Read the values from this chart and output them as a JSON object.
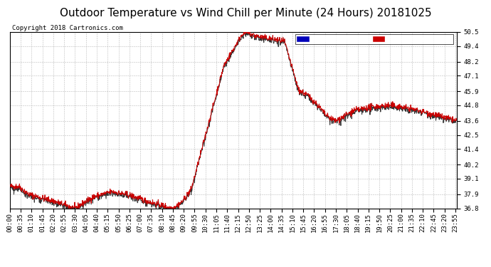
{
  "title": "Outdoor Temperature vs Wind Chill per Minute (24 Hours) 20181025",
  "copyright": "Copyright 2018 Cartronics.com",
  "ylim": [
    36.8,
    50.5
  ],
  "yticks": [
    36.8,
    37.9,
    39.1,
    40.2,
    41.4,
    42.5,
    43.6,
    44.8,
    45.9,
    47.1,
    48.2,
    49.4,
    50.5
  ],
  "line_color": "#cc0000",
  "wind_chill_color": "#333333",
  "background_color": "#ffffff",
  "plot_background": "#ffffff",
  "grid_color": "#aaaaaa",
  "legend_wind_chill_bg": "#0000bb",
  "legend_temp_bg": "#cc0000",
  "title_fontsize": 11,
  "tick_fontsize": 6.5,
  "copyright_fontsize": 6.5,
  "n_minutes": 1440
}
